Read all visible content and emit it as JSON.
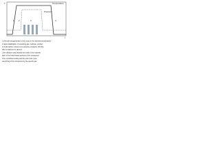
{
  "diagram": {
    "axis_labels": {
      "y": "T",
      "x": "t"
    },
    "curve_labels": [
      "Temperature",
      "Pressure"
    ],
    "regions": [
      "1",
      "2",
      "3",
      "4"
    ],
    "notes": [
      "1 thermal homogenization of the room in the aluminium/combustion",
      "2 rapid volatilization of remaining gas, methane, product",
      "  or hydrocarbon mixtures at a pressure of approx. 30 hPa,",
      "  after a treatment in vacuum",
      "3 the diffusion step towards the inside of the material",
      "  layer of the heat-treated portions of the component",
      "4 the controlled cooling and the end of the cycle",
      "  quenching of the component by the quench gas"
    ]
  }
}
